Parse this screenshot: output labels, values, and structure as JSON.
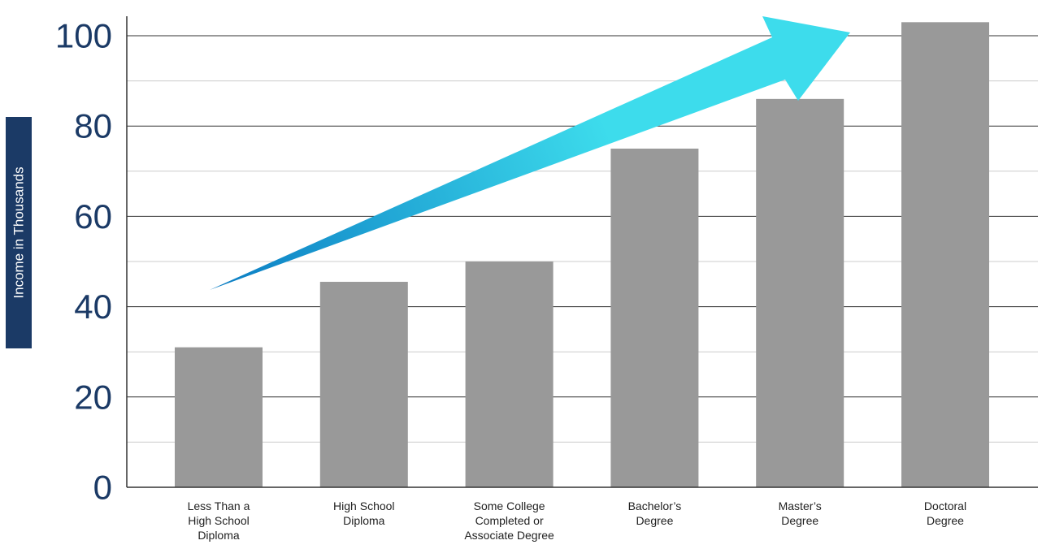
{
  "chart_data": {
    "type": "bar",
    "categories": [
      [
        "Less Than a",
        "High School",
        "Diploma"
      ],
      [
        "High School",
        "Diploma"
      ],
      [
        "Some College",
        "Completed or",
        "Associate Degree"
      ],
      [
        "Bachelor’s",
        "Degree"
      ],
      [
        "Master’s",
        "Degree"
      ],
      [
        "Doctoral",
        "Degree"
      ]
    ],
    "values": [
      31,
      45.5,
      50,
      75,
      86,
      103
    ],
    "ylabel": "Income in Thousands",
    "xlabel": "",
    "yticks": [
      0,
      20,
      40,
      60,
      80,
      100
    ],
    "ylim": [
      0,
      100
    ],
    "grid": true,
    "annotation": "upward trend arrow",
    "colors": {
      "bar": "#999999",
      "gridline": "#333333",
      "minor_gridline": "#cccccc",
      "ylabel_box": "#1b3a66",
      "tick_text": "#1b3a66",
      "arrow_start": "#0b7cc3",
      "arrow_end": "#3ddcec"
    }
  }
}
